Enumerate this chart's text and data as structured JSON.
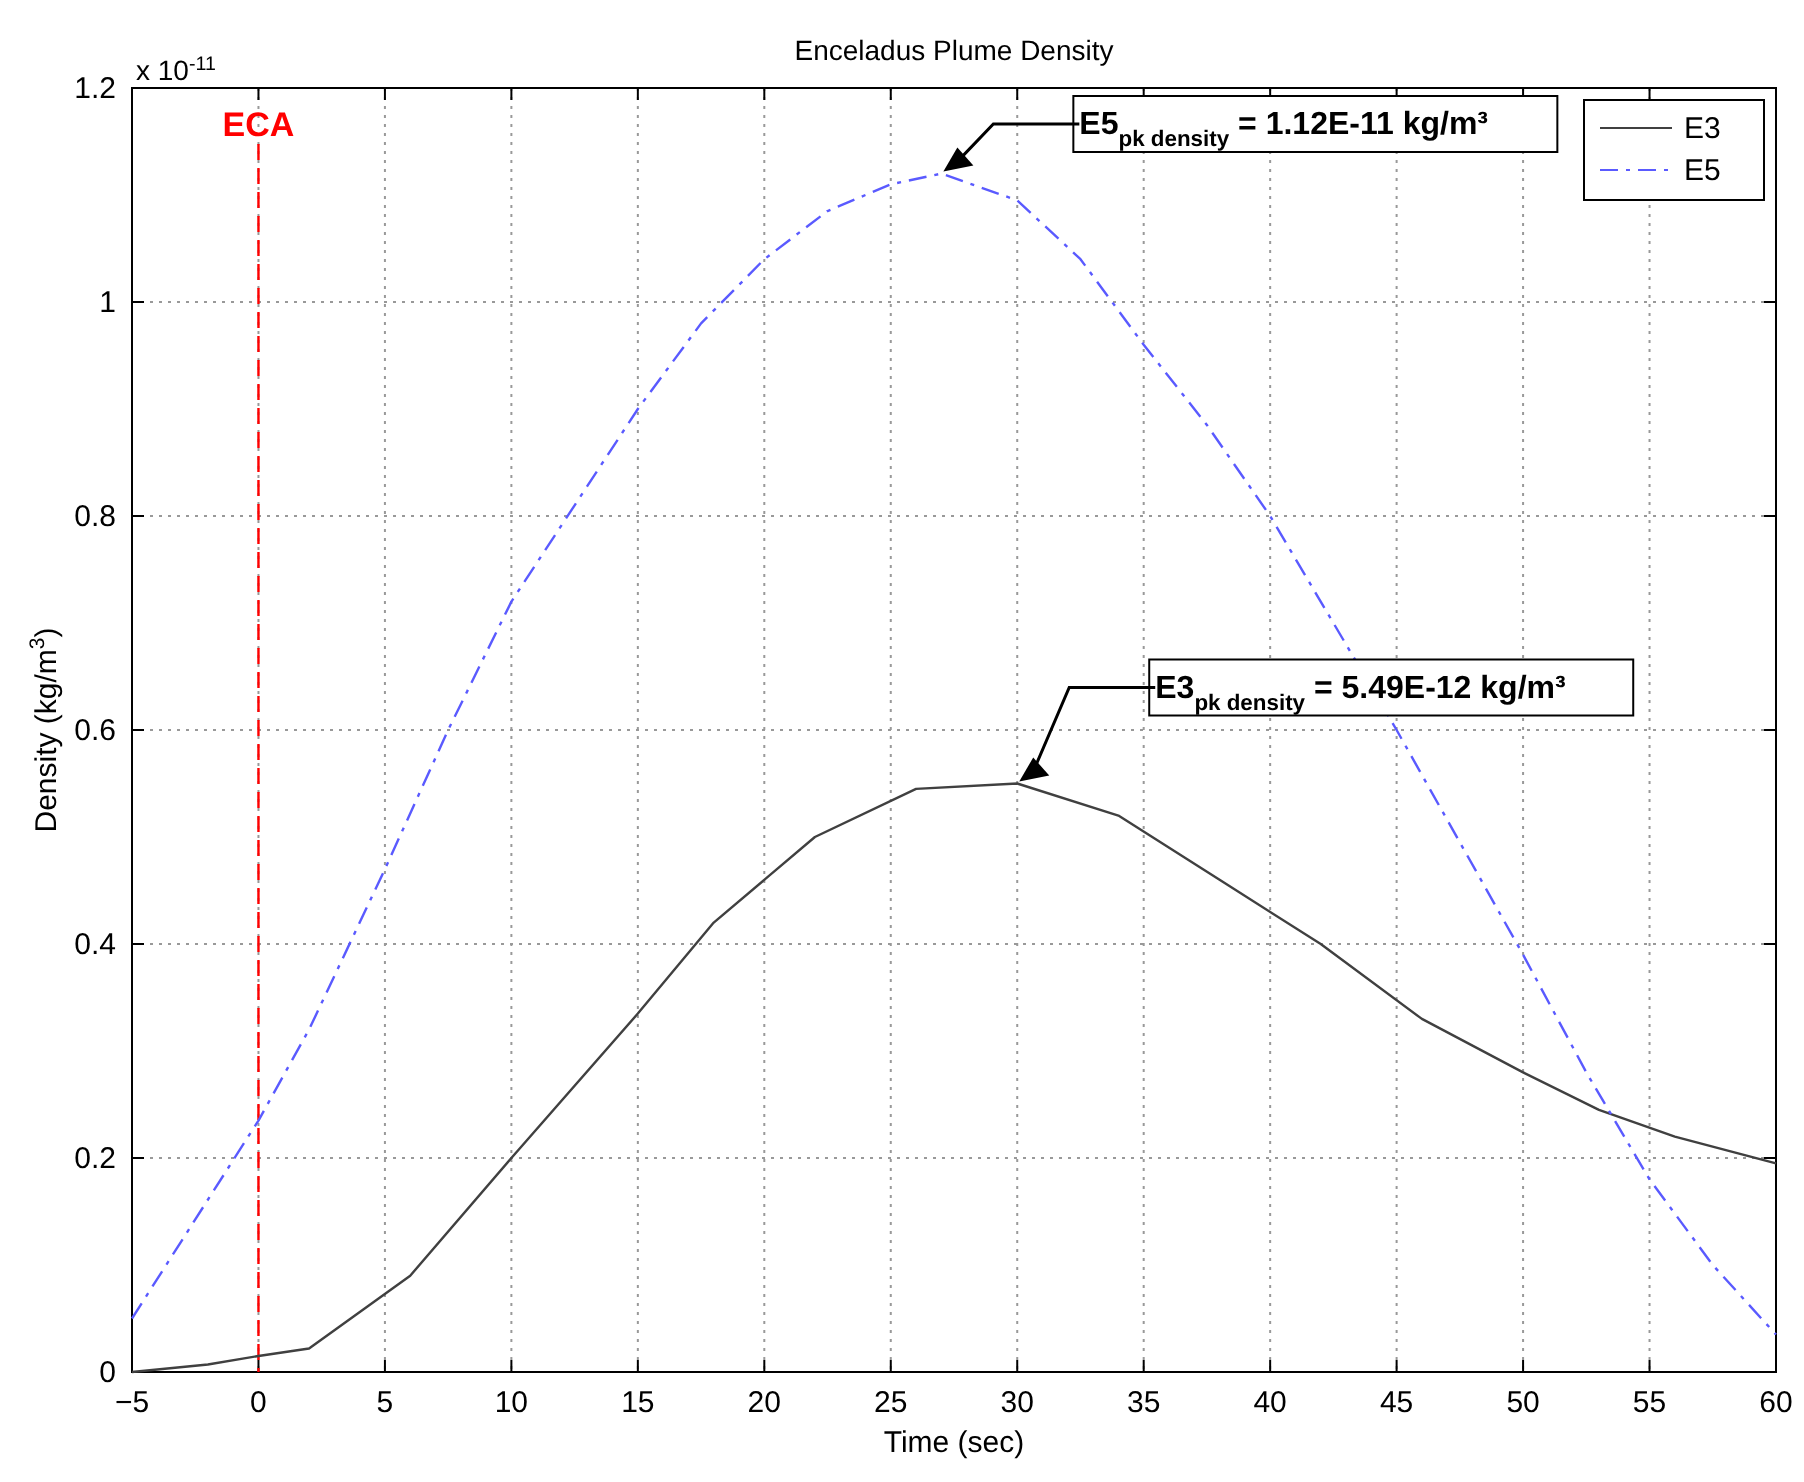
{
  "chart_data": {
    "type": "line",
    "title": "Enceladus Plume Density",
    "xlabel": "Time (sec)",
    "ylabel": "Density (kg/m$^{3}$)",
    "xlim": [
      -5,
      60
    ],
    "xticks": [
      -5,
      0,
      5,
      10,
      15,
      20,
      25,
      30,
      35,
      40,
      45,
      50,
      55,
      60
    ],
    "ylim": [
      0,
      1.2
    ],
    "yticks": [
      0,
      0.2,
      0.4,
      0.6,
      0.8,
      1,
      1.2
    ],
    "grid": true,
    "legend": "top right",
    "marker": "none",
    "series": [
      {
        "name": "E3",
        "color": "#404040",
        "line_style": "solid",
        "x": [
          -5,
          -2,
          0,
          2,
          6,
          10,
          15,
          18,
          22,
          26,
          30,
          34,
          38,
          42,
          46,
          50,
          53,
          56,
          60
        ],
        "values": [
          0,
          0.007,
          0.015,
          0.022,
          0.09,
          0.2,
          0.335,
          0.42,
          0.5,
          0.545,
          0.55,
          0.52,
          0.46,
          0.4,
          0.33,
          0.28,
          0.245,
          0.22,
          0.195
        ]
      },
      {
        "name": "E5",
        "color": "#5a5aff",
        "line_style": "dashed",
        "x": [
          -5,
          0,
          2,
          5,
          7.5,
          10,
          12.5,
          15,
          17.5,
          20,
          22.5,
          25,
          27,
          30,
          32.5,
          35,
          37.5,
          40,
          42.5,
          45,
          47.5,
          50,
          52.5,
          55,
          57.5,
          60
        ],
        "values": [
          0.05,
          0.235,
          0.32,
          0.47,
          0.6,
          0.72,
          0.81,
          0.9,
          0.98,
          1.04,
          1.085,
          1.11,
          1.12,
          1.095,
          1.04,
          0.96,
          0.885,
          0.8,
          0.7,
          0.6,
          0.495,
          0.39,
          0.28,
          0.18,
          0.1,
          0.035
        ]
      }
    ],
    "ref_lines": [
      {
        "axis": "x",
        "value": 0,
        "label": "ECA",
        "color": "#ff0000",
        "line_style": "dashed"
      }
    ],
    "annotations": [
      "x 10$^{-11}$",
      "E5$_{pk density}$ = 1.12E-11 kg/m³",
      "E3$_{pk density}$ = 5.49E-12 kg/m³"
    ]
  }
}
